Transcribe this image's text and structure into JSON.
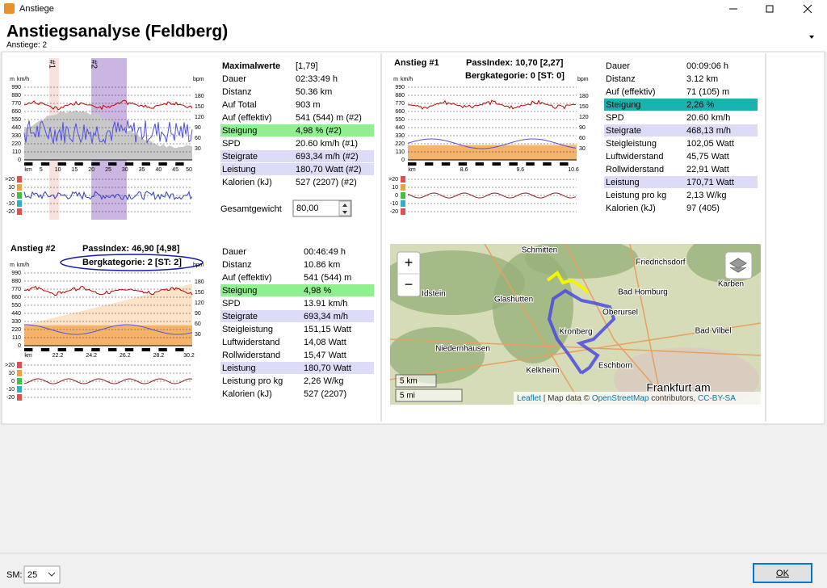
{
  "window_title": "Anstiege",
  "header": {
    "title": "Anstiegsanalyse (Feldberg)",
    "subtitle": "Anstiege: 2"
  },
  "overview_chart": {
    "markers": [
      "#1",
      "#2"
    ],
    "left_units": [
      "m",
      "km/h"
    ],
    "right_unit": "bpm",
    "left_ticks": [
      "990",
      "880",
      "770",
      "660",
      "550",
      "440",
      "330",
      "220",
      "110",
      "0"
    ],
    "right_ticks": [
      "180",
      "150",
      "120",
      "90",
      "60",
      "30"
    ],
    "x_ticks": [
      "km",
      "5",
      "10",
      "15",
      "20",
      "25",
      "30",
      "35",
      "40",
      "45",
      "50"
    ],
    "small_ticks": [
      ">20",
      "10",
      "0",
      "-10",
      "-20"
    ]
  },
  "max_values": {
    "title": "Maximalwerte",
    "note": "[1,79]",
    "rows": [
      {
        "label": "Dauer",
        "value": "02:33:49 h"
      },
      {
        "label": "Distanz",
        "value": "50.36 km"
      },
      {
        "label": "Auf Total",
        "value": "903 m"
      },
      {
        "label": "Auf (effektiv)",
        "value": "541 (544) m (#2)"
      },
      {
        "label": "Steigung",
        "value": "4,98 % (#2)",
        "bg": "#8ef08e"
      },
      {
        "label": "SPD",
        "value": "20.60 km/h (#1)"
      },
      {
        "label": "Steigrate",
        "value": "693,34 m/h (#2)",
        "bg": "#dcdcf6"
      },
      {
        "label": "Leistung",
        "value": "180,70 Watt (#2)",
        "bg": "#dcdcf6"
      },
      {
        "label": "Kalorien (kJ)",
        "value": "527 (2207) (#2)"
      }
    ],
    "weight_label": "Gesamtgewicht",
    "weight_value": "80,00"
  },
  "climbs": [
    {
      "title": "Anstieg #1",
      "pass_index": "PassIndex: 10,70 [2,27]",
      "category": "Bergkategorie: 0 [ST: 0]",
      "chart": {
        "left_units": [
          "m",
          "km/h"
        ],
        "right_unit": "bpm",
        "left_ticks": [
          "990",
          "880",
          "770",
          "660",
          "550",
          "440",
          "330",
          "220",
          "110",
          "0"
        ],
        "right_ticks": [
          "180",
          "150",
          "120",
          "90",
          "60",
          "30"
        ],
        "x_ticks": [
          "km",
          "8.6",
          "9.6",
          "10.6"
        ],
        "small_ticks": [
          ">20",
          "10",
          "0",
          "-10",
          "-20"
        ]
      },
      "stats": [
        {
          "label": "Dauer",
          "value": "00:09:06 h"
        },
        {
          "label": "Distanz",
          "value": "3.12 km"
        },
        {
          "label": "Auf (effektiv)",
          "value": "71 (105) m"
        },
        {
          "label": "Steigung",
          "value": "2,26 %",
          "bg": "#1ab2ae"
        },
        {
          "label": "SPD",
          "value": "20.60 km/h"
        },
        {
          "label": "Steigrate",
          "value": "468,13 m/h",
          "bg": "#dcdcf6"
        },
        {
          "label": "Steigleistung",
          "value": "102,05 Watt",
          "fg": "#8a8a8a"
        },
        {
          "label": "Luftwiderstand",
          "value": "45,75 Watt",
          "fg": "#8a8a8a"
        },
        {
          "label": "Rollwiderstand",
          "value": "22,91 Watt",
          "fg": "#8a8a8a"
        },
        {
          "label": "Leistung",
          "value": "170,71 Watt",
          "bg": "#dcdcf6"
        },
        {
          "label": "Leistung pro kg",
          "value": "2,13 W/kg"
        },
        {
          "label": "Kalorien (kJ)",
          "value": "97 (405)"
        }
      ]
    },
    {
      "title": "Anstieg #2",
      "pass_index": "PassIndex: 46,90 [4,98]",
      "category": "Bergkategorie: 2 [ST: 2]",
      "chart": {
        "left_units": [
          "m",
          "km/h"
        ],
        "right_unit": "bpm",
        "left_ticks": [
          "990",
          "880",
          "770",
          "660",
          "550",
          "440",
          "330",
          "220",
          "110",
          "0"
        ],
        "right_ticks": [
          "180",
          "150",
          "120",
          "90",
          "60",
          "30"
        ],
        "x_ticks": [
          "km",
          "22.2",
          "24.2",
          "26.2",
          "28.2",
          "30.2"
        ],
        "small_ticks": [
          ">20",
          "10",
          "0",
          "-10",
          "-20"
        ]
      },
      "stats": [
        {
          "label": "Dauer",
          "value": "00:46:49 h"
        },
        {
          "label": "Distanz",
          "value": "10.86 km"
        },
        {
          "label": "Auf (effektiv)",
          "value": "541 (544) m"
        },
        {
          "label": "Steigung",
          "value": "4,98 %",
          "bg": "#8ef08e"
        },
        {
          "label": "SPD",
          "value": "13.91 km/h"
        },
        {
          "label": "Steigrate",
          "value": "693,34 m/h",
          "bg": "#dcdcf6"
        },
        {
          "label": "Steigleistung",
          "value": "151,15 Watt",
          "fg": "#8a8a8a"
        },
        {
          "label": "Luftwiderstand",
          "value": "14,08 Watt",
          "fg": "#8a8a8a"
        },
        {
          "label": "Rollwiderstand",
          "value": "15,47 Watt",
          "fg": "#8a8a8a"
        },
        {
          "label": "Leistung",
          "value": "180,70 Watt",
          "bg": "#dcdcf6"
        },
        {
          "label": "Leistung pro kg",
          "value": "2,26 W/kg"
        },
        {
          "label": "Kalorien (kJ)",
          "value": "527 (2207)"
        }
      ]
    }
  ],
  "map": {
    "zoom_in": "+",
    "zoom_out": "−",
    "places": [
      "Schmitten",
      "Friedrichsdorf",
      "Idstein",
      "Glashütten",
      "Bad Homburg",
      "Karben",
      "Oberursel",
      "Bad Vilbel",
      "Kronberg",
      "Niedernhausen",
      "Kelkheim",
      "Eschborn",
      "Frankfurt am"
    ],
    "scale": [
      "5 km",
      "5 mi"
    ],
    "attribution": [
      "Leaflet",
      " | Map data © ",
      "OpenStreetMap",
      " contributors, ",
      "CC-BY-SA"
    ]
  },
  "footer": {
    "sm_label": "SM:",
    "sm_value": "25",
    "ok": "OK"
  }
}
